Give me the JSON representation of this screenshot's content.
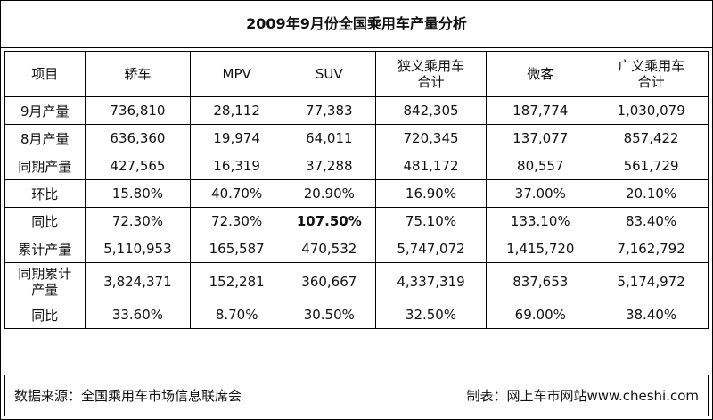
{
  "title": "2009年9月份全国乘用车产量分析",
  "headers": [
    "项目",
    "轿车",
    "MPV",
    "SUV",
    "狭义乘用车\n合计",
    "微客",
    "广义乘用车\n合计"
  ],
  "rows": [
    {
      "label": "9月产量",
      "values": [
        "736,810",
        "28,112",
        "77,383",
        "842,305",
        "187,774",
        "1,030,079"
      ]
    },
    {
      "label": "8月产量",
      "values": [
        "636,360",
        "19,974",
        "64,011",
        "720,345",
        "137,077",
        "857,422"
      ]
    },
    {
      "label": "同期产量",
      "values": [
        "427,565",
        "16,319",
        "37,288",
        "481,172",
        "80,557",
        "561,729"
      ]
    },
    {
      "label": "环比",
      "values": [
        "15.80%",
        "40.70%",
        "20.90%",
        "16.90%",
        "37.00%",
        "20.10%"
      ]
    },
    {
      "label": "同比",
      "values": [
        "72.30%",
        "72.30%",
        "107.50%",
        "75.10%",
        "133.10%",
        "83.40%"
      ],
      "bold_col": 2
    },
    {
      "label": "累计产量",
      "values": [
        "5,110,953",
        "165,587",
        "470,532",
        "5,747,072",
        "1,415,720",
        "7,162,792"
      ]
    },
    {
      "label": "同期累计\n产量",
      "values": [
        "3,824,371",
        "152,281",
        "360,667",
        "4,337,319",
        "837,653",
        "5,174,972"
      ]
    },
    {
      "label": "同比",
      "values": [
        "33.60%",
        "8.70%",
        "30.50%",
        "32.50%",
        "69.00%",
        "38.40%"
      ]
    }
  ],
  "footer": {
    "source": "数据来源：全国乘用车市场信息联席会",
    "maker": "制表：网上车市网站www.cheshi.com"
  }
}
